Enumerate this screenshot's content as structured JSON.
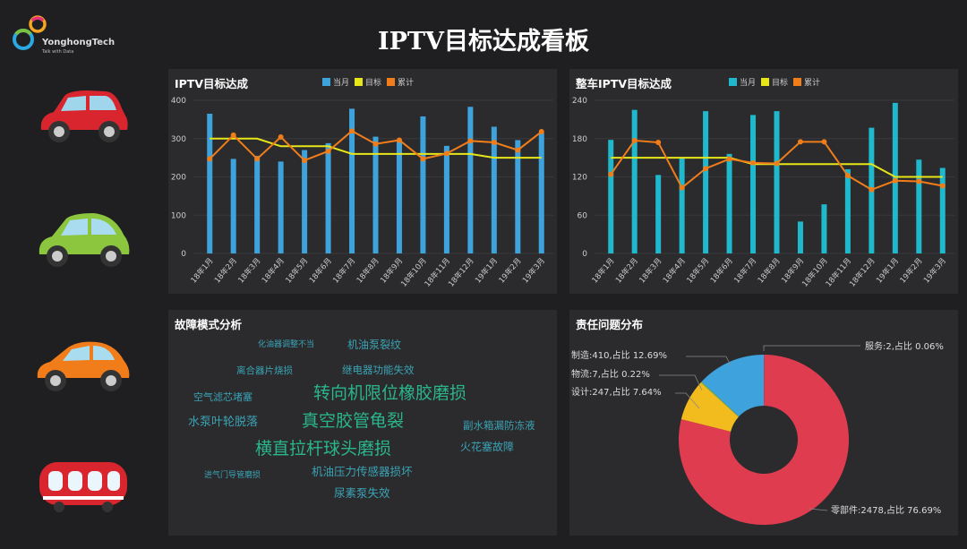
{
  "header": {
    "title": "IPTV目标达成看板",
    "logo_text": "YonghongTech",
    "logo_sub": "Talk with Data"
  },
  "legend": {
    "current": "当月",
    "target": "目标",
    "cumulative": "累计"
  },
  "colors": {
    "bar1": "#3ea3dc",
    "bar2": "#1fb8cc",
    "target": "#e6e619",
    "cumulative": "#f07d1a",
    "wordGreen": "#2bb58a",
    "wordBlue": "#3aa3b5"
  },
  "chart_data": [
    {
      "type": "bar+line",
      "title": "IPTV目标达成",
      "categories": [
        "18年1月",
        "18年2月",
        "18年3月",
        "18年4月",
        "18年5月",
        "18年6月",
        "18年7月",
        "18年8月",
        "18年9月",
        "18年10月",
        "18年11月",
        "18年12月",
        "19年1月",
        "19年2月",
        "19年3月"
      ],
      "ylim": [
        0,
        400
      ],
      "yticks": [
        0,
        100,
        200,
        300,
        400
      ],
      "grid": true,
      "legend": "top-center",
      "series": [
        {
          "name": "当月",
          "type": "bar",
          "values": [
            365,
            247,
            255,
            240,
            270,
            288,
            378,
            305,
            295,
            358,
            281,
            383,
            331,
            296,
            315
          ]
        },
        {
          "name": "目标",
          "type": "line",
          "values": [
            300,
            300,
            300,
            280,
            280,
            280,
            260,
            260,
            260,
            260,
            260,
            260,
            250,
            250,
            250
          ]
        },
        {
          "name": "累计",
          "type": "line",
          "values": [
            247,
            309,
            247,
            304,
            243,
            267,
            320,
            286,
            296,
            247,
            261,
            294,
            290,
            270,
            318
          ]
        }
      ]
    },
    {
      "type": "bar+line",
      "title": "整车IPTV目标达成",
      "categories": [
        "18年1月",
        "18年2月",
        "18年3月",
        "18年4月",
        "18年5月",
        "18年6月",
        "18年7月",
        "18年8月",
        "18年9月",
        "18年10月",
        "18年11月",
        "18年12月",
        "19年1月",
        "19年2月",
        "19年3月"
      ],
      "ylim": [
        0,
        240
      ],
      "yticks": [
        0,
        60,
        120,
        180,
        240
      ],
      "grid": true,
      "legend": "top-center",
      "series": [
        {
          "name": "当月",
          "type": "bar",
          "values": [
            178,
            225,
            123,
            149,
            223,
            156,
            217,
            223,
            50,
            77,
            132,
            197,
            236,
            147,
            134
          ]
        },
        {
          "name": "目标",
          "type": "line",
          "values": [
            150,
            150,
            150,
            150,
            150,
            150,
            140,
            140,
            140,
            140,
            140,
            140,
            120,
            120,
            120
          ]
        },
        {
          "name": "累计",
          "type": "line",
          "values": [
            124,
            177,
            174,
            103,
            133,
            148,
            142,
            141,
            175,
            175,
            122,
            100,
            114,
            113,
            106
          ]
        }
      ]
    },
    {
      "type": "pie",
      "title": "责任问题分布",
      "donut": true,
      "slices": [
        {
          "name": "服务",
          "value": 2,
          "pct": "0.06%",
          "color": "#3b6fe0",
          "label": "服务:2,占比 0.06%"
        },
        {
          "name": "零部件",
          "value": 2478,
          "pct": "76.69%",
          "color": "#e03c50",
          "label": "零部件:2478,占比 76.69%"
        },
        {
          "name": "设计",
          "value": 247,
          "pct": "7.64%",
          "color": "#f2bc1f",
          "label": "设计:247,占比 7.64%"
        },
        {
          "name": "物流",
          "value": 7,
          "pct": "0.22%",
          "color": "#7ab648",
          "label": "物流:7,占比 0.22%"
        },
        {
          "name": "制造",
          "value": 410,
          "pct": "12.69%",
          "color": "#3ea3dc",
          "label": "制造:410,占比 12.69%"
        }
      ]
    }
  ],
  "wordcloud": {
    "title": "故障模式分析",
    "words": [
      {
        "text": "化油器调整不当",
        "size": 9,
        "color": "blue"
      },
      {
        "text": "机油泵裂纹",
        "size": 12,
        "color": "blue"
      },
      {
        "text": "离合器片烧损",
        "size": 10.5,
        "color": "blue"
      },
      {
        "text": "继电器功能失效",
        "size": 11.5,
        "color": "blue"
      },
      {
        "text": "转向机限位橡胶磨损",
        "size": 19,
        "color": "green"
      },
      {
        "text": "空气滤芯堵塞",
        "size": 11,
        "color": "blue"
      },
      {
        "text": "水泵叶轮脱落",
        "size": 13,
        "color": "blue"
      },
      {
        "text": "真空胶管龟裂",
        "size": 19,
        "color": "green"
      },
      {
        "text": "副水箱漏防冻液",
        "size": 11.5,
        "color": "blue"
      },
      {
        "text": "横直拉杆球头磨损",
        "size": 19,
        "color": "green"
      },
      {
        "text": "火花塞故障",
        "size": 12,
        "color": "blue"
      },
      {
        "text": "进气门导管磨损",
        "size": 9,
        "color": "blue"
      },
      {
        "text": "机油压力传感器损坏",
        "size": 12.5,
        "color": "blue"
      },
      {
        "text": "尿素泵失效",
        "size": 12.5,
        "color": "blue"
      }
    ]
  }
}
